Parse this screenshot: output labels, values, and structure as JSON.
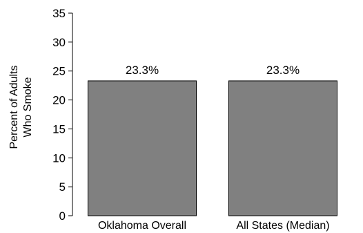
{
  "chart_data": {
    "type": "bar",
    "categories": [
      "Oklahoma Overall",
      "All States (Median)"
    ],
    "values": [
      23.3,
      23.3
    ],
    "data_labels": [
      "23.3%",
      "23.3%"
    ],
    "title": "",
    "xlabel": "",
    "ylabel_lines": [
      "Percent of Adults",
      "Who Smoke"
    ],
    "ylim": [
      0,
      35
    ],
    "yticks": [
      0,
      5,
      10,
      15,
      20,
      25,
      30,
      35
    ],
    "grid": false,
    "bar_color": "#808080",
    "bar_edge_color": "#000000"
  }
}
